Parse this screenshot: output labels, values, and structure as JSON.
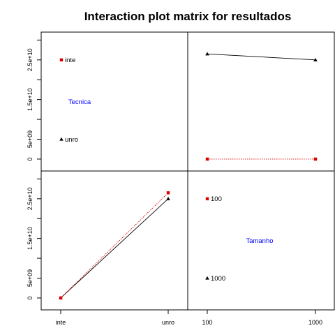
{
  "title": "Interaction plot matrix for resultados",
  "chart_data": {
    "type": "line",
    "title": "Interaction plot matrix for resultados",
    "factors": [
      {
        "name": "Tecnica",
        "levels": [
          "inte",
          "unro"
        ]
      },
      {
        "name": "Tamanho",
        "levels": [
          "100",
          "1000"
        ]
      }
    ],
    "ylim": [
      -3000000000,
      32000000000
    ],
    "y_ticks": [
      0,
      5000000000,
      10000000000,
      15000000000,
      20000000000,
      25000000000,
      30000000000
    ],
    "y_tick_labels": [
      "0",
      "5e+09",
      "",
      "1.5e+10",
      "",
      "2.5e+10",
      ""
    ],
    "x_tick_labels": {
      "Tecnica": [
        "inte",
        "unro"
      ],
      "Tamanho": [
        "100",
        "1000"
      ]
    },
    "panels": [
      {
        "id": "top-right",
        "x_factor": "Tamanho",
        "categories": [
          "100",
          "1000"
        ],
        "trace_factor": "Tecnica",
        "series": [
          {
            "name": "unro",
            "values": [
              26500000000,
              25000000000
            ],
            "color": "#000000",
            "marker": "triangle",
            "line": "solid"
          },
          {
            "name": "inte",
            "values": [
              0,
              0
            ],
            "color": "#dd0000",
            "marker": "square",
            "line": "dotted"
          }
        ]
      },
      {
        "id": "bottom-left",
        "x_factor": "Tecnica",
        "categories": [
          "inte",
          "unro"
        ],
        "trace_factor": "Tamanho",
        "series": [
          {
            "name": "1000",
            "values": [
              0,
              25000000000
            ],
            "color": "#000000",
            "marker": "triangle",
            "line": "solid"
          },
          {
            "name": "100",
            "values": [
              0,
              26500000000
            ],
            "color": "#dd0000",
            "marker": "square",
            "line": "dotted"
          }
        ]
      }
    ],
    "legends": {
      "Tecnica": [
        {
          "label": "inte",
          "value": 25000000000,
          "marker": "square",
          "color": "#dd0000"
        },
        {
          "label": "unro",
          "value": 5000000000,
          "marker": "triangle",
          "color": "#000000"
        }
      ],
      "Tamanho": [
        {
          "label": "100",
          "value": 25000000000,
          "marker": "square",
          "color": "#dd0000"
        },
        {
          "label": "1000",
          "value": 5000000000,
          "marker": "triangle",
          "color": "#000000"
        }
      ]
    },
    "factor_label_color": "#0000ff",
    "grid": false
  }
}
